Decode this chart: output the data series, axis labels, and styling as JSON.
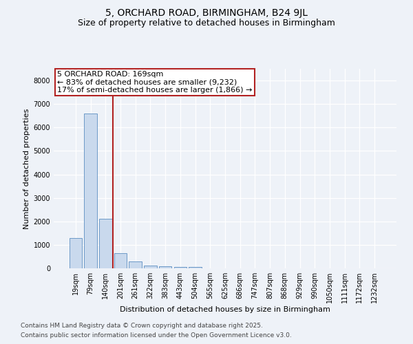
{
  "title": "5, ORCHARD ROAD, BIRMINGHAM, B24 9JL",
  "subtitle": "Size of property relative to detached houses in Birmingham",
  "xlabel": "Distribution of detached houses by size in Birmingham",
  "ylabel": "Number of detached properties",
  "categories": [
    "19sqm",
    "79sqm",
    "140sqm",
    "201sqm",
    "261sqm",
    "322sqm",
    "383sqm",
    "443sqm",
    "504sqm",
    "565sqm",
    "625sqm",
    "686sqm",
    "747sqm",
    "807sqm",
    "868sqm",
    "929sqm",
    "990sqm",
    "1050sqm",
    "1111sqm",
    "1172sqm",
    "1232sqm"
  ],
  "values": [
    1300,
    6600,
    2100,
    650,
    300,
    130,
    80,
    60,
    60,
    0,
    0,
    0,
    0,
    0,
    0,
    0,
    0,
    0,
    0,
    0,
    0
  ],
  "bar_color": "#c9d9ed",
  "bar_edge_color": "#5b8dc0",
  "vline_x": 2.5,
  "vline_color": "#b22222",
  "ylim": [
    0,
    8500
  ],
  "yticks": [
    0,
    1000,
    2000,
    3000,
    4000,
    5000,
    6000,
    7000,
    8000
  ],
  "annotation_text": "5 ORCHARD ROAD: 169sqm\n← 83% of detached houses are smaller (9,232)\n17% of semi-detached houses are larger (1,866) →",
  "annotation_box_color": "#ffffff",
  "annotation_box_edge": "#b22222",
  "footer_line1": "Contains HM Land Registry data © Crown copyright and database right 2025.",
  "footer_line2": "Contains public sector information licensed under the Open Government Licence v3.0.",
  "background_color": "#eef2f8",
  "grid_color": "#ffffff",
  "title_fontsize": 10,
  "subtitle_fontsize": 9,
  "axis_label_fontsize": 8,
  "tick_fontsize": 7,
  "annotation_fontsize": 8,
  "footer_fontsize": 6.5
}
